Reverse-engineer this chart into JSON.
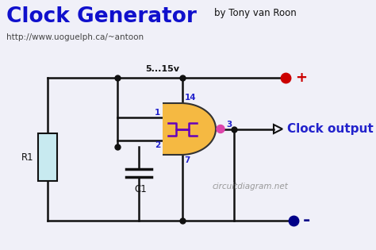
{
  "title": "Clock Generator",
  "subtitle": "http://www.uoguelph.ca/~antoon",
  "author": "by Tony van Roon",
  "watermark": "circuitdiagram.net",
  "clock_output_label": "Clock output",
  "bg_color": "#f0f0f8",
  "title_color": "#1010cc",
  "wire_color": "#111111",
  "label_color": "#2222cc",
  "gate_fill": "#f5b942",
  "gate_edge": "#333333",
  "resistor_fill": "#c8eaf0",
  "plus_dot_color": "#cc0000",
  "minus_dot_color": "#000088",
  "pin_dot_color": "#dd44aa",
  "junction_color": "#111111",
  "vcc_label": "5...15v",
  "pin1_label": "1",
  "pin2_label": "2",
  "pin3_label": "3",
  "pin7_label": "7",
  "pin14_label": "14",
  "r1_label": "R1",
  "c1_label": "C1",
  "plus_label": "+",
  "minus_label": "-"
}
